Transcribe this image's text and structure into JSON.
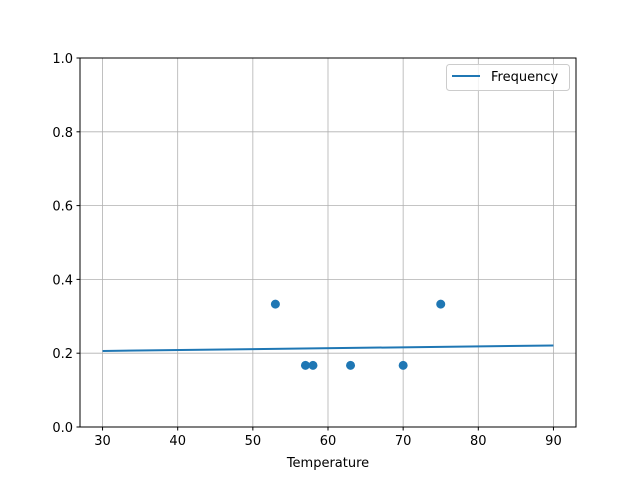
{
  "chart_data": {
    "type": "scatter",
    "title": "",
    "xlabel": "Temperature",
    "ylabel": "",
    "xlim": [
      27,
      93
    ],
    "ylim": [
      0,
      1.0
    ],
    "grid": true,
    "legend": {
      "placement": "top-right",
      "entries": [
        "Frequency"
      ]
    },
    "xticks": [
      30,
      40,
      50,
      60,
      70,
      80,
      90
    ],
    "xtick_labels": [
      "30",
      "40",
      "50",
      "60",
      "70",
      "80",
      "90"
    ],
    "yticks": [
      0,
      0.2,
      0.4,
      0.6,
      0.8,
      1.0
    ],
    "ytick_labels": [
      "0.0",
      "0.2",
      "0.4",
      "0.6",
      "0.8",
      "1.0"
    ],
    "line": {
      "name": "Frequency",
      "x": [
        30,
        90
      ],
      "y": [
        0.206,
        0.221
      ],
      "color": "#1f77b4"
    },
    "points": {
      "x": [
        53,
        57,
        58,
        63,
        70,
        75
      ],
      "y": [
        0.333,
        0.167,
        0.167,
        0.167,
        0.167,
        0.333
      ],
      "color": "#1f77b4"
    }
  }
}
